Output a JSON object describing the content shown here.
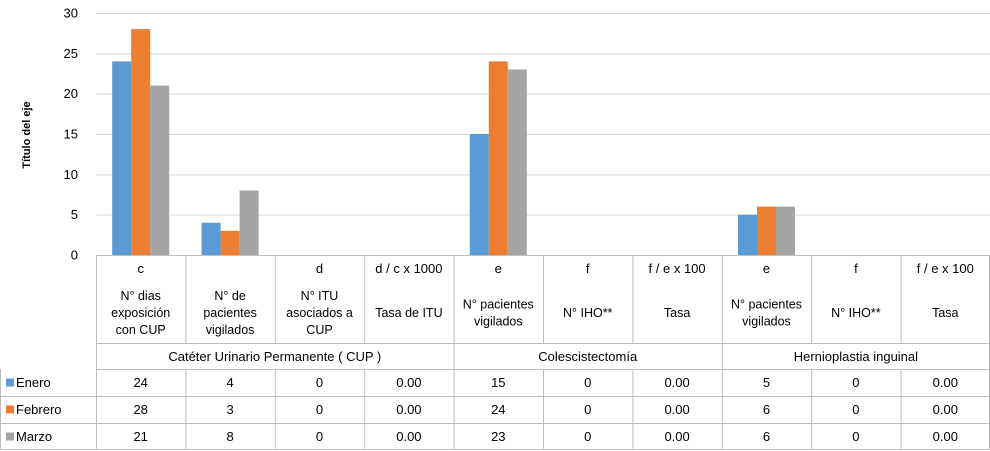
{
  "chart_data": {
    "type": "bar",
    "ylabel": "Título del eje",
    "ylim": [
      0,
      30
    ],
    "yticks": [
      0,
      5,
      10,
      15,
      20,
      25,
      30
    ],
    "grid": true,
    "legend_placement": "left, in data table",
    "colors": {
      "Enero": "#5b9bd5",
      "Febrero": "#ed7d31",
      "Marzo": "#a5a5a5",
      "grid": "#d9d9d9",
      "axis": "#bfbfbf"
    },
    "categories": [
      {
        "code": "c",
        "label": "N° dias exposición con CUP",
        "label_lines": [
          "N° dias",
          "exposición",
          "con CUP"
        ]
      },
      {
        "code": "",
        "label": "N° de pacientes vigilados",
        "label_lines": [
          "N° de",
          "pacientes",
          "vigilados"
        ]
      },
      {
        "code": "d",
        "label": "N° ITU asociados a CUP",
        "label_lines": [
          "N° ITU",
          "asociados a",
          "CUP"
        ]
      },
      {
        "code": "d / c x 1000",
        "label": "Tasa de ITU",
        "label_lines": [
          "Tasa de ITU"
        ]
      },
      {
        "code": "e",
        "label": "N° pacientes vigilados",
        "label_lines": [
          "N° pacientes",
          "vigilados"
        ]
      },
      {
        "code": "f",
        "label": "N° IHO**",
        "label_lines": [
          "N° IHO**"
        ]
      },
      {
        "code": "f / e x 100",
        "label": "Tasa",
        "label_lines": [
          "Tasa"
        ]
      },
      {
        "code": "e",
        "label": "N° pacientes vigilados",
        "label_lines": [
          "N° pacientes",
          "vigilados"
        ]
      },
      {
        "code": "f",
        "label": "N° IHO**",
        "label_lines": [
          "N° IHO**"
        ]
      },
      {
        "code": "f / e x 100",
        "label": "Tasa",
        "label_lines": [
          "Tasa"
        ]
      }
    ],
    "groups": [
      {
        "name": "Catéter Urinario Permanente ( CUP )",
        "span": 4
      },
      {
        "name": "Colescistectomía",
        "span": 3
      },
      {
        "name": "Hernioplastia inguinal",
        "span": 3
      }
    ],
    "series": [
      {
        "name": "Enero",
        "values": [
          24,
          4,
          0,
          0.0,
          15,
          0,
          0.0,
          5,
          0,
          0.0
        ],
        "display": [
          "24",
          "4",
          "0",
          "0.00",
          "15",
          "0",
          "0.00",
          "5",
          "0",
          "0.00"
        ]
      },
      {
        "name": "Febrero",
        "values": [
          28,
          3,
          0,
          0.0,
          24,
          0,
          0.0,
          6,
          0,
          0.0
        ],
        "display": [
          "28",
          "3",
          "0",
          "0.00",
          "24",
          "0",
          "0.00",
          "6",
          "0",
          "0.00"
        ]
      },
      {
        "name": "Marzo",
        "values": [
          21,
          8,
          0,
          0.0,
          23,
          0,
          0.0,
          6,
          0,
          0.0
        ],
        "display": [
          "21",
          "8",
          "0",
          "0.00",
          "23",
          "0",
          "0.00",
          "6",
          "0",
          "0.00"
        ]
      }
    ]
  }
}
